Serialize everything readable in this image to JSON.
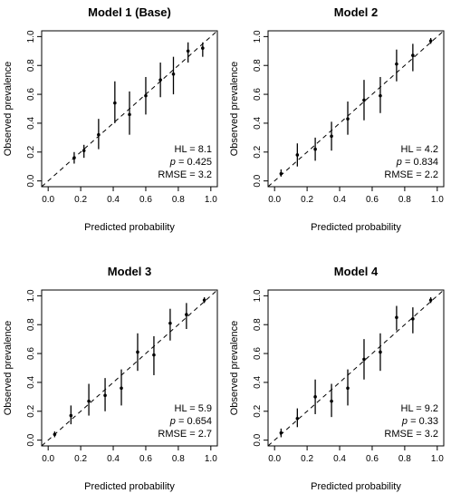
{
  "figure": {
    "xlabel": "Predicted probability",
    "ylabel": "Observed prevalence",
    "tick_labels": [
      "0.0",
      "0.2",
      "0.4",
      "0.6",
      "0.8",
      "1.0"
    ],
    "stat_labels": {
      "hl": "HL = ",
      "p": "p",
      "p_suffix": " = ",
      "rmse": "RMSE = "
    }
  },
  "chart_data": [
    {
      "type": "scatter",
      "title": "Model 1 (Base)",
      "xlabel": "Predicted probability",
      "ylabel": "Observed prevalence",
      "xlim": [
        0,
        1
      ],
      "ylim": [
        0,
        1
      ],
      "reference_line": "diagonal dashed y = x",
      "grid": false,
      "points": [
        {
          "x": 0.16,
          "y": 0.16,
          "lo": 0.12,
          "hi": 0.2
        },
        {
          "x": 0.22,
          "y": 0.21,
          "lo": 0.16,
          "hi": 0.25
        },
        {
          "x": 0.31,
          "y": 0.32,
          "lo": 0.22,
          "hi": 0.43
        },
        {
          "x": 0.41,
          "y": 0.54,
          "lo": 0.4,
          "hi": 0.69
        },
        {
          "x": 0.5,
          "y": 0.46,
          "lo": 0.32,
          "hi": 0.62
        },
        {
          "x": 0.6,
          "y": 0.59,
          "lo": 0.46,
          "hi": 0.72
        },
        {
          "x": 0.69,
          "y": 0.7,
          "lo": 0.58,
          "hi": 0.82
        },
        {
          "x": 0.77,
          "y": 0.74,
          "lo": 0.6,
          "hi": 0.86
        },
        {
          "x": 0.86,
          "y": 0.9,
          "lo": 0.82,
          "hi": 0.96
        },
        {
          "x": 0.95,
          "y": 0.92,
          "lo": 0.86,
          "hi": 0.96
        }
      ],
      "stats": {
        "hl": "8.1",
        "p": "0.425",
        "rmse": "3.2"
      }
    },
    {
      "type": "scatter",
      "title": "Model 2",
      "xlabel": "Predicted probability",
      "ylabel": "Observed prevalence",
      "xlim": [
        0,
        1
      ],
      "ylim": [
        0,
        1
      ],
      "reference_line": "diagonal dashed y = x",
      "grid": false,
      "points": [
        {
          "x": 0.04,
          "y": 0.05,
          "lo": 0.03,
          "hi": 0.08
        },
        {
          "x": 0.14,
          "y": 0.18,
          "lo": 0.1,
          "hi": 0.26
        },
        {
          "x": 0.25,
          "y": 0.22,
          "lo": 0.14,
          "hi": 0.3
        },
        {
          "x": 0.35,
          "y": 0.31,
          "lo": 0.21,
          "hi": 0.41
        },
        {
          "x": 0.45,
          "y": 0.43,
          "lo": 0.32,
          "hi": 0.55
        },
        {
          "x": 0.55,
          "y": 0.56,
          "lo": 0.42,
          "hi": 0.7
        },
        {
          "x": 0.65,
          "y": 0.59,
          "lo": 0.47,
          "hi": 0.72
        },
        {
          "x": 0.75,
          "y": 0.81,
          "lo": 0.69,
          "hi": 0.91
        },
        {
          "x": 0.85,
          "y": 0.87,
          "lo": 0.76,
          "hi": 0.95
        },
        {
          "x": 0.96,
          "y": 0.97,
          "lo": 0.95,
          "hi": 0.99
        }
      ],
      "stats": {
        "hl": "4.2",
        "p": "0.834",
        "rmse": "2.2"
      }
    },
    {
      "type": "scatter",
      "title": "Model 3",
      "xlabel": "Predicted probability",
      "ylabel": "Observed prevalence",
      "xlim": [
        0,
        1
      ],
      "ylim": [
        0,
        1
      ],
      "reference_line": "diagonal dashed y = x",
      "grid": false,
      "points": [
        {
          "x": 0.04,
          "y": 0.04,
          "lo": 0.02,
          "hi": 0.06
        },
        {
          "x": 0.14,
          "y": 0.17,
          "lo": 0.11,
          "hi": 0.24
        },
        {
          "x": 0.25,
          "y": 0.27,
          "lo": 0.17,
          "hi": 0.39
        },
        {
          "x": 0.35,
          "y": 0.31,
          "lo": 0.2,
          "hi": 0.43
        },
        {
          "x": 0.45,
          "y": 0.36,
          "lo": 0.24,
          "hi": 0.49
        },
        {
          "x": 0.55,
          "y": 0.61,
          "lo": 0.48,
          "hi": 0.74
        },
        {
          "x": 0.65,
          "y": 0.59,
          "lo": 0.45,
          "hi": 0.72
        },
        {
          "x": 0.75,
          "y": 0.81,
          "lo": 0.69,
          "hi": 0.91
        },
        {
          "x": 0.85,
          "y": 0.87,
          "lo": 0.77,
          "hi": 0.95
        },
        {
          "x": 0.96,
          "y": 0.97,
          "lo": 0.95,
          "hi": 0.99
        }
      ],
      "stats": {
        "hl": "5.9",
        "p": "0.654",
        "rmse": "2.7"
      }
    },
    {
      "type": "scatter",
      "title": "Model 4",
      "xlabel": "Predicted probability",
      "ylabel": "Observed prevalence",
      "xlim": [
        0,
        1
      ],
      "ylim": [
        0,
        1
      ],
      "reference_line": "diagonal dashed y = x",
      "grid": false,
      "points": [
        {
          "x": 0.04,
          "y": 0.05,
          "lo": 0.02,
          "hi": 0.08
        },
        {
          "x": 0.14,
          "y": 0.15,
          "lo": 0.09,
          "hi": 0.22
        },
        {
          "x": 0.25,
          "y": 0.3,
          "lo": 0.18,
          "hi": 0.42
        },
        {
          "x": 0.35,
          "y": 0.27,
          "lo": 0.16,
          "hi": 0.39
        },
        {
          "x": 0.45,
          "y": 0.36,
          "lo": 0.24,
          "hi": 0.49
        },
        {
          "x": 0.55,
          "y": 0.56,
          "lo": 0.42,
          "hi": 0.7
        },
        {
          "x": 0.65,
          "y": 0.61,
          "lo": 0.48,
          "hi": 0.74
        },
        {
          "x": 0.75,
          "y": 0.85,
          "lo": 0.76,
          "hi": 0.93
        },
        {
          "x": 0.85,
          "y": 0.84,
          "lo": 0.74,
          "hi": 0.92
        },
        {
          "x": 0.96,
          "y": 0.97,
          "lo": 0.95,
          "hi": 0.99
        }
      ],
      "stats": {
        "hl": "9.2",
        "p": "0.33",
        "rmse": "3.2"
      }
    }
  ]
}
